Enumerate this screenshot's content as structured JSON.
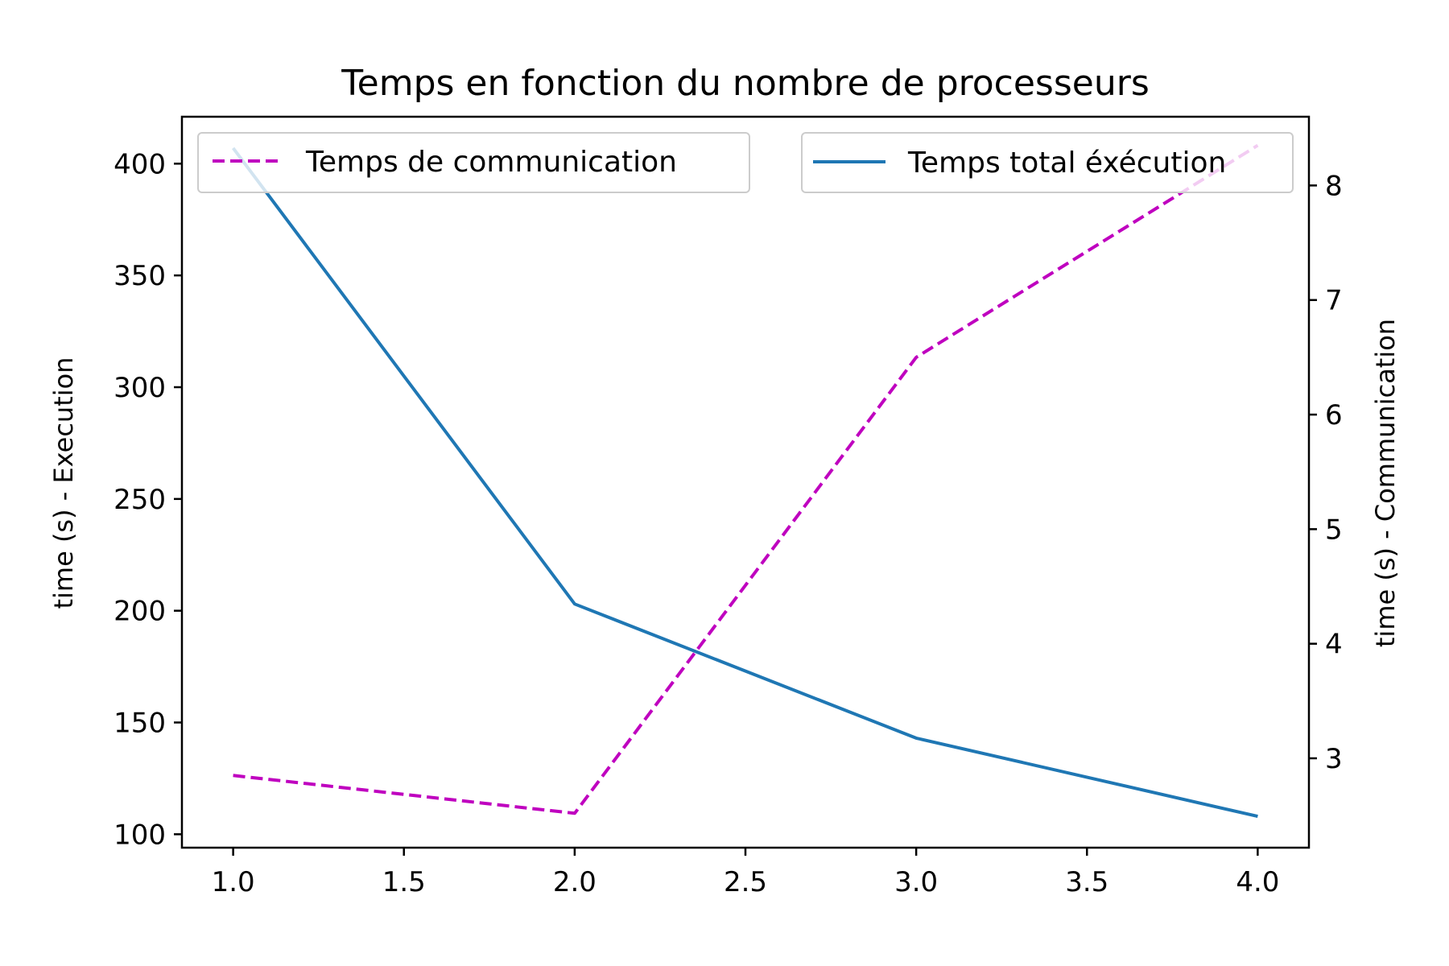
{
  "chart_data": {
    "type": "line",
    "title": "Temps en fonction du nombre de processeurs",
    "xlabel": "",
    "x": [
      1.0,
      2.0,
      3.0,
      4.0
    ],
    "xlim": [
      0.85,
      4.15
    ],
    "xticks": [
      "1.0",
      "1.5",
      "2.0",
      "2.5",
      "3.0",
      "3.5",
      "4.0"
    ],
    "left_axis": {
      "label": "time (s) - Execution",
      "ylim": [
        94,
        421
      ],
      "ticks": [
        100,
        150,
        200,
        250,
        300,
        350,
        400
      ]
    },
    "right_axis": {
      "label": "time (s) - Communication",
      "ylim": [
        2.22,
        8.6
      ],
      "ticks": [
        3,
        4,
        5,
        6,
        7,
        8
      ]
    },
    "series": [
      {
        "name": "Temps total éxécution",
        "axis": "left",
        "values": [
          407,
          203,
          143,
          108
        ],
        "color": "#1f77b4",
        "style": "solid"
      },
      {
        "name": "Temps de communication",
        "axis": "right",
        "values": [
          2.85,
          2.52,
          6.5,
          8.35
        ],
        "color": "#bf00bf",
        "style": "dashed"
      }
    ],
    "legends": [
      {
        "series": "Temps de communication",
        "placement": "upper-left"
      },
      {
        "series": "Temps total éxécution",
        "placement": "upper-right"
      }
    ],
    "grid": false
  }
}
